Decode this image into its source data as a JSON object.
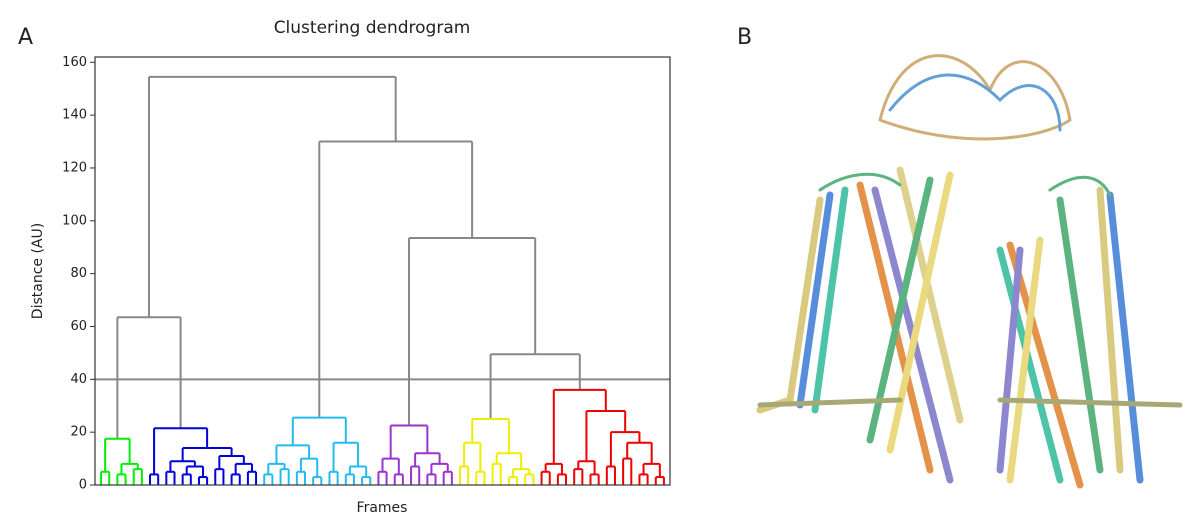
{
  "panel_labels": [
    "A",
    "B"
  ],
  "chart_data": {
    "type": "dendrogram",
    "title": "Clustering dendrogram",
    "xlabel": "Frames",
    "ylabel": "Distance (AU)",
    "ylim": [
      0,
      162
    ],
    "yticks": [
      0,
      20,
      40,
      60,
      80,
      100,
      120,
      140,
      160
    ],
    "threshold": 40,
    "threshold_color": "#888888",
    "tree": {
      "height": 154.5,
      "color": "#888888",
      "children": [
        {
          "height": 63.5,
          "children": [
            {
              "height": 17.5,
              "color": "#00ee00",
              "children": [
                {
                  "height": 5,
                  "children": [
                    {
                      "height": 0
                    },
                    {
                      "height": 0
                    }
                  ]
                },
                {
                  "height": 8,
                  "children": [
                    {
                      "height": 4,
                      "children": [
                        {
                          "height": 0
                        },
                        {
                          "height": 0
                        }
                      ]
                    },
                    {
                      "height": 6,
                      "children": [
                        {
                          "height": 0
                        },
                        {
                          "height": 0
                        }
                      ]
                    }
                  ]
                }
              ]
            },
            {
              "height": 21.5,
              "color": "#0000dd",
              "children": [
                {
                  "height": 4,
                  "children": [
                    {
                      "height": 0
                    },
                    {
                      "height": 0
                    }
                  ]
                },
                {
                  "height": 14,
                  "children": [
                    {
                      "height": 9,
                      "children": [
                        {
                          "height": 5,
                          "children": [
                            {
                              "height": 0
                            },
                            {
                              "height": 0
                            }
                          ]
                        },
                        {
                          "height": 7,
                          "children": [
                            {
                              "height": 4,
                              "children": [
                                {
                                  "height": 0
                                },
                                {
                                  "height": 0
                                }
                              ]
                            },
                            {
                              "height": 3,
                              "children": [
                                {
                                  "height": 0
                                },
                                {
                                  "height": 0
                                }
                              ]
                            }
                          ]
                        }
                      ]
                    },
                    {
                      "height": 11,
                      "children": [
                        {
                          "height": 6,
                          "children": [
                            {
                              "height": 0
                            },
                            {
                              "height": 0
                            }
                          ]
                        },
                        {
                          "height": 8,
                          "children": [
                            {
                              "height": 4,
                              "children": [
                                {
                                  "height": 0
                                },
                                {
                                  "height": 0
                                }
                              ]
                            },
                            {
                              "height": 5,
                              "children": [
                                {
                                  "height": 0
                                },
                                {
                                  "height": 0
                                }
                              ]
                            }
                          ]
                        }
                      ]
                    }
                  ]
                }
              ]
            }
          ]
        },
        {
          "height": 130,
          "children": [
            {
              "height": 25.5,
              "color": "#22bbee",
              "children": [
                {
                  "height": 15,
                  "children": [
                    {
                      "height": 8,
                      "children": [
                        {
                          "height": 4,
                          "children": [
                            {
                              "height": 0
                            },
                            {
                              "height": 0
                            }
                          ]
                        },
                        {
                          "height": 6,
                          "children": [
                            {
                              "height": 0
                            },
                            {
                              "height": 0
                            }
                          ]
                        }
                      ]
                    },
                    {
                      "height": 10,
                      "children": [
                        {
                          "height": 5,
                          "children": [
                            {
                              "height": 0
                            },
                            {
                              "height": 0
                            }
                          ]
                        },
                        {
                          "height": 3,
                          "children": [
                            {
                              "height": 0
                            },
                            {
                              "height": 0
                            }
                          ]
                        }
                      ]
                    }
                  ]
                },
                {
                  "height": 16,
                  "children": [
                    {
                      "height": 5,
                      "children": [
                        {
                          "height": 0
                        },
                        {
                          "height": 0
                        }
                      ]
                    },
                    {
                      "height": 7,
                      "children": [
                        {
                          "height": 4,
                          "children": [
                            {
                              "height": 0
                            },
                            {
                              "height": 0
                            }
                          ]
                        },
                        {
                          "height": 3,
                          "children": [
                            {
                              "height": 0
                            },
                            {
                              "height": 0
                            }
                          ]
                        }
                      ]
                    }
                  ]
                }
              ]
            },
            {
              "height": 93.5,
              "children": [
                {
                  "height": 22.5,
                  "color": "#9933cc",
                  "children": [
                    {
                      "height": 10,
                      "children": [
                        {
                          "height": 5,
                          "children": [
                            {
                              "height": 0
                            },
                            {
                              "height": 0
                            }
                          ]
                        },
                        {
                          "height": 4,
                          "children": [
                            {
                              "height": 0
                            },
                            {
                              "height": 0
                            }
                          ]
                        }
                      ]
                    },
                    {
                      "height": 12,
                      "children": [
                        {
                          "height": 7,
                          "children": [
                            {
                              "height": 0
                            },
                            {
                              "height": 0
                            }
                          ]
                        },
                        {
                          "height": 8,
                          "children": [
                            {
                              "height": 4,
                              "children": [
                                {
                                  "height": 0
                                },
                                {
                                  "height": 0
                                }
                              ]
                            },
                            {
                              "height": 5,
                              "children": [
                                {
                                  "height": 0
                                },
                                {
                                  "height": 0
                                }
                              ]
                            }
                          ]
                        }
                      ]
                    }
                  ]
                },
                {
                  "height": 49.5,
                  "children": [
                    {
                      "height": 25,
                      "color": "#eeee00",
                      "children": [
                        {
                          "height": 16,
                          "children": [
                            {
                              "height": 7,
                              "children": [
                                {
                                  "height": 0
                                },
                                {
                                  "height": 0
                                }
                              ]
                            },
                            {
                              "height": 5,
                              "children": [
                                {
                                  "height": 0
                                },
                                {
                                  "height": 0
                                }
                              ]
                            }
                          ]
                        },
                        {
                          "height": 12,
                          "children": [
                            {
                              "height": 8,
                              "children": [
                                {
                                  "height": 0
                                },
                                {
                                  "height": 0
                                }
                              ]
                            },
                            {
                              "height": 6,
                              "children": [
                                {
                                  "height": 3,
                                  "children": [
                                    {
                                      "height": 0
                                    },
                                    {
                                      "height": 0
                                    }
                                  ]
                                },
                                {
                                  "height": 4,
                                  "children": [
                                    {
                                      "height": 0
                                    },
                                    {
                                      "height": 0
                                    }
                                  ]
                                }
                              ]
                            }
                          ]
                        }
                      ]
                    },
                    {
                      "height": 36,
                      "color": "#ee0000",
                      "children": [
                        {
                          "height": 8,
                          "children": [
                            {
                              "height": 5,
                              "children": [
                                {
                                  "height": 0
                                },
                                {
                                  "height": 0
                                }
                              ]
                            },
                            {
                              "height": 4,
                              "children": [
                                {
                                  "height": 0
                                },
                                {
                                  "height": 0
                                }
                              ]
                            }
                          ]
                        },
                        {
                          "height": 28,
                          "children": [
                            {
                              "height": 9,
                              "children": [
                                {
                                  "height": 6,
                                  "children": [
                                    {
                                      "height": 0
                                    },
                                    {
                                      "height": 0
                                    }
                                  ]
                                },
                                {
                                  "height": 4,
                                  "children": [
                                    {
                                      "height": 0
                                    },
                                    {
                                      "height": 0
                                    }
                                  ]
                                }
                              ]
                            },
                            {
                              "height": 20,
                              "children": [
                                {
                                  "height": 7,
                                  "children": [
                                    {
                                      "height": 0
                                    },
                                    {
                                      "height": 0
                                    }
                                  ]
                                },
                                {
                                  "height": 16,
                                  "children": [
                                    {
                                      "height": 10,
                                      "children": [
                                        {
                                          "height": 0
                                        },
                                        {
                                          "height": 0
                                        }
                                      ]
                                    },
                                    {
                                      "height": 8,
                                      "children": [
                                        {
                                          "height": 4,
                                          "children": [
                                            {
                                              "height": 0
                                            },
                                            {
                                              "height": 0
                                            }
                                          ]
                                        },
                                        {
                                          "height": 3,
                                          "children": [
                                            {
                                              "height": 0
                                            },
                                            {
                                              "height": 0
                                            }
                                          ]
                                        }
                                      ]
                                    }
                                  ]
                                }
                              ]
                            }
                          ]
                        }
                      ]
                    }
                  ]
                }
              ]
            }
          ]
        }
      ]
    }
  }
}
